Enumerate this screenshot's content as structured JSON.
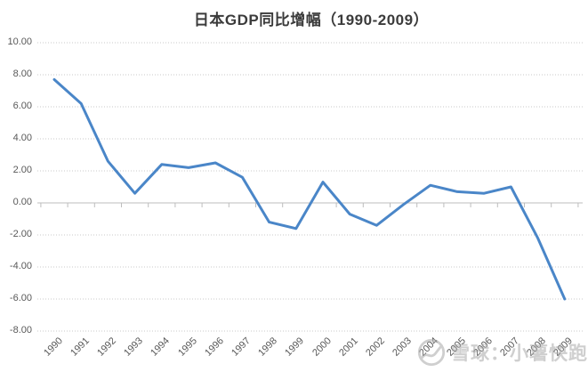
{
  "chart_data": {
    "type": "line",
    "title": "日本GDP同比增幅（1990-2009）",
    "categories": [
      "1990",
      "1991",
      "1992",
      "1993",
      "1994",
      "1995",
      "1996",
      "1997",
      "1998",
      "1999",
      "2000",
      "2001",
      "2002",
      "2003",
      "2004",
      "2005",
      "2006",
      "2007",
      "2008",
      "2009"
    ],
    "series": [
      {
        "name": "日本GDP同比增幅",
        "values": [
          7.7,
          6.2,
          2.6,
          0.6,
          2.4,
          2.2,
          2.5,
          1.6,
          -1.2,
          -1.6,
          1.3,
          -0.7,
          -1.4,
          -0.1,
          1.1,
          0.7,
          0.6,
          1.0,
          -2.2,
          -6.0
        ]
      }
    ],
    "xlabel": "",
    "ylabel": "",
    "ylim": [
      -8,
      10
    ],
    "ytick_values": [
      10,
      8,
      6,
      4,
      2,
      0,
      -2,
      -4,
      -6,
      -8
    ],
    "ytick_labels": [
      "10.00",
      "8.00",
      "6.00",
      "4.00",
      "2.00",
      "0.00",
      "-2.00",
      "-4.00",
      "-6.00",
      "-8.00"
    ],
    "grid": true,
    "gridline_style": "dotted",
    "legend": false,
    "x_label_rotation_deg": -45,
    "colors": {
      "line": "#4a86c8",
      "gridline": "#c8c8c8",
      "zero_axis": "#bdbdbd",
      "axis_text": "#595959",
      "title_text": "#3b3b3b",
      "background": "#ffffff"
    }
  },
  "watermark": {
    "logo": "xueqiu-snowball-logo",
    "text": "雪球：小薯快跑"
  }
}
